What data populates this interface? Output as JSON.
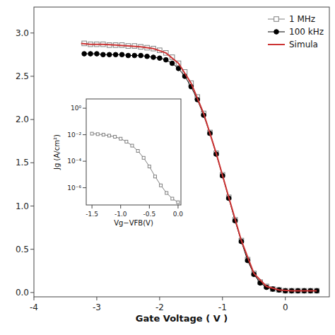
{
  "chart_data": [
    {
      "type": "line",
      "xlabel": "Gate Voltage (  V )",
      "xlim": [
        -4,
        0.7
      ],
      "ylim": [
        -0.05,
        3.3
      ],
      "xticks": [
        -4,
        -3,
        -2,
        -1,
        0
      ],
      "yticks": [
        {
          "value": 0.0,
          "label": "0.0"
        },
        0.5,
        {
          "value": 1.0,
          "label": "1.0"
        },
        1.5,
        {
          "value": 2.0,
          "label": "2.0"
        },
        2.5,
        {
          "value": 3.0,
          "label": "3.0"
        }
      ],
      "legend": "upper right",
      "series": [
        {
          "name": "1 MHz",
          "color": "gray",
          "marker": "square-open",
          "line_style": "solid",
          "x": [
            -3.2,
            -3.1,
            -3.0,
            -2.9,
            -2.8,
            -2.7,
            -2.6,
            -2.5,
            -2.4,
            -2.3,
            -2.2,
            -2.1,
            -2.0,
            -1.9,
            -1.8,
            -1.7,
            -1.6,
            -1.5,
            -1.4,
            -1.3,
            -1.2,
            -1.1,
            -1.0,
            -0.9,
            -0.8,
            -0.7,
            -0.6,
            -0.5,
            -0.4,
            -0.3,
            -0.2,
            -0.1,
            0.0,
            0.1,
            0.2,
            0.3,
            0.4,
            0.5
          ],
          "values": [
            2.88,
            2.87,
            2.87,
            2.87,
            2.86,
            2.86,
            2.86,
            2.85,
            2.85,
            2.84,
            2.83,
            2.82,
            2.8,
            2.77,
            2.72,
            2.65,
            2.55,
            2.42,
            2.26,
            2.07,
            1.85,
            1.61,
            1.36,
            1.1,
            0.84,
            0.6,
            0.38,
            0.22,
            0.12,
            0.07,
            0.04,
            0.03,
            0.02,
            0.02,
            0.02,
            0.02,
            0.02,
            0.02
          ]
        },
        {
          "name": "100 kHz",
          "color": "black",
          "marker": "circle",
          "line_style": "solid",
          "x": [
            -3.2,
            -3.1,
            -3.0,
            -2.9,
            -2.8,
            -2.7,
            -2.6,
            -2.5,
            -2.4,
            -2.3,
            -2.2,
            -2.1,
            -2.0,
            -1.9,
            -1.8,
            -1.7,
            -1.6,
            -1.5,
            -1.4,
            -1.3,
            -1.2,
            -1.1,
            -1.0,
            -0.9,
            -0.8,
            -0.7,
            -0.6,
            -0.5,
            -0.4,
            -0.3,
            -0.2,
            -0.1,
            0.0,
            0.1,
            0.2,
            0.3,
            0.4,
            0.5
          ],
          "values": [
            2.76,
            2.76,
            2.76,
            2.75,
            2.75,
            2.75,
            2.75,
            2.74,
            2.74,
            2.74,
            2.73,
            2.72,
            2.71,
            2.69,
            2.65,
            2.59,
            2.5,
            2.38,
            2.23,
            2.05,
            1.84,
            1.6,
            1.35,
            1.09,
            0.83,
            0.59,
            0.37,
            0.21,
            0.11,
            0.06,
            0.04,
            0.03,
            0.02,
            0.02,
            0.02,
            0.02,
            0.02,
            0.02
          ]
        },
        {
          "name": "Simula",
          "color": "#cc3333",
          "marker": "none",
          "line_style": "solid",
          "x": [
            -3.25,
            -3.1,
            -2.9,
            -2.7,
            -2.5,
            -2.3,
            -2.1,
            -1.9,
            -1.7,
            -1.5,
            -1.3,
            -1.1,
            -0.9,
            -0.7,
            -0.5,
            -0.3,
            -0.1,
            0.1,
            0.3,
            0.5
          ],
          "values": [
            2.88,
            2.87,
            2.87,
            2.86,
            2.85,
            2.84,
            2.82,
            2.77,
            2.65,
            2.42,
            2.07,
            1.61,
            1.1,
            0.6,
            0.22,
            0.07,
            0.03,
            0.02,
            0.02,
            0.02
          ]
        }
      ]
    },
    {
      "type": "line",
      "xlabel": "Vg−VFB(V)",
      "ylabel": "Jg (A/cm²)",
      "log": "y",
      "xlim": [
        -1.6,
        0.05
      ],
      "ylim": [
        5e-08,
        5
      ],
      "xticks": [
        -1.5,
        {
          "value": -1.0,
          "label": "-1.0"
        },
        -0.5,
        {
          "value": 0.0,
          "label": "0.0"
        }
      ],
      "yticks": [
        {
          "value": 1,
          "label": "10⁰"
        },
        {
          "value": 0.01,
          "label": "10⁻²"
        },
        {
          "value": 0.0001,
          "label": "10⁻⁴"
        },
        {
          "value": 1e-06,
          "label": "10⁻⁶"
        }
      ],
      "series": [
        {
          "color": "gray",
          "marker": "square-open",
          "line_style": "solid",
          "x": [
            -1.5,
            -1.4,
            -1.3,
            -1.2,
            -1.1,
            -1.0,
            -0.9,
            -0.8,
            -0.7,
            -0.6,
            -0.5,
            -0.4,
            -0.3,
            -0.2,
            -0.1,
            0.0
          ],
          "values": [
            0.012,
            0.011,
            0.01,
            0.0085,
            0.007,
            0.005,
            0.003,
            0.0015,
            0.0006,
            0.00018,
            4e-05,
            7e-06,
            1.5e-06,
            4e-07,
            1.5e-07,
            8e-08
          ]
        }
      ]
    }
  ]
}
